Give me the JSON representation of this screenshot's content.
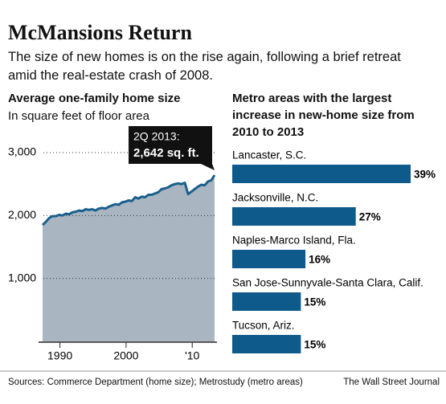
{
  "title": "McMansions Return",
  "subtitle": "The size of new homes is on the rise again, following a brief retreat amid the real-estate crash of 2008.",
  "chart_data": [
    {
      "type": "area",
      "title": "Average one-family home size",
      "subtitle": "In square feet of floor area",
      "annotation": {
        "label": "2Q 2013:",
        "value_label": "2,642 sq. ft."
      },
      "x": [
        1987.375,
        1987.875,
        1988.375,
        1988.875,
        1989.375,
        1989.875,
        1990.375,
        1990.875,
        1991.375,
        1991.875,
        1992.375,
        1992.875,
        1993.375,
        1993.875,
        1994.375,
        1994.875,
        1995.375,
        1995.875,
        1996.375,
        1996.875,
        1997.375,
        1997.875,
        1998.375,
        1998.875,
        1999.375,
        1999.875,
        2000.375,
        2000.875,
        2001.375,
        2001.875,
        2002.375,
        2002.875,
        2003.375,
        2003.875,
        2004.375,
        2004.875,
        2005.375,
        2005.875,
        2006.375,
        2006.875,
        2007.375,
        2007.875,
        2008.375,
        2008.875,
        2009.375,
        2009.875,
        2010.375,
        2010.875,
        2011.375,
        2011.875,
        2012.375,
        2012.875,
        2013.375
      ],
      "values": [
        1850,
        1900,
        1960,
        1990,
        1990,
        2010,
        2000,
        2030,
        2020,
        2050,
        2060,
        2080,
        2070,
        2100,
        2090,
        2100,
        2080,
        2110,
        2120,
        2110,
        2140,
        2160,
        2180,
        2170,
        2210,
        2220,
        2240,
        2230,
        2290,
        2270,
        2300,
        2290,
        2330,
        2330,
        2350,
        2370,
        2420,
        2430,
        2450,
        2480,
        2500,
        2510,
        2500,
        2520,
        2340,
        2380,
        2420,
        2460,
        2490,
        2480,
        2540,
        2560,
        2642
      ],
      "line_color": "#1a5f8c",
      "fill_color": "#a9b6c2",
      "xlim": [
        1987.375,
        2013.375
      ],
      "xticks": [
        1990,
        2000,
        {
          "value": 2010,
          "label": "'10"
        }
      ],
      "ylim": [
        0,
        3000
      ],
      "yticks": [
        {
          "value": 1000,
          "label": "1,000"
        },
        {
          "value": 2000,
          "label": "2,000"
        },
        {
          "value": 3000,
          "label": "3,000"
        }
      ],
      "grid": true
    },
    {
      "type": "hbar",
      "title": "Metro areas with the largest increase in new-home size from 2010 to 2013",
      "categories": [
        "Lancaster, S.C.",
        "Jacksonville, N.C.",
        "Naples-Marco Island, Fla.",
        "San Jose-Sunnyvale-Santa Clara, Calif.",
        "Tucson, Ariz."
      ],
      "values": [
        39,
        27,
        16,
        15,
        15
      ],
      "value_labels": [
        "39%",
        "27%",
        "16%",
        "15%",
        "15%"
      ],
      "color": "#0e5a8a"
    }
  ],
  "source": "Sources: Commerce Department (home size); Metrostudy (metro areas)",
  "credit": "The Wall Street Journal"
}
